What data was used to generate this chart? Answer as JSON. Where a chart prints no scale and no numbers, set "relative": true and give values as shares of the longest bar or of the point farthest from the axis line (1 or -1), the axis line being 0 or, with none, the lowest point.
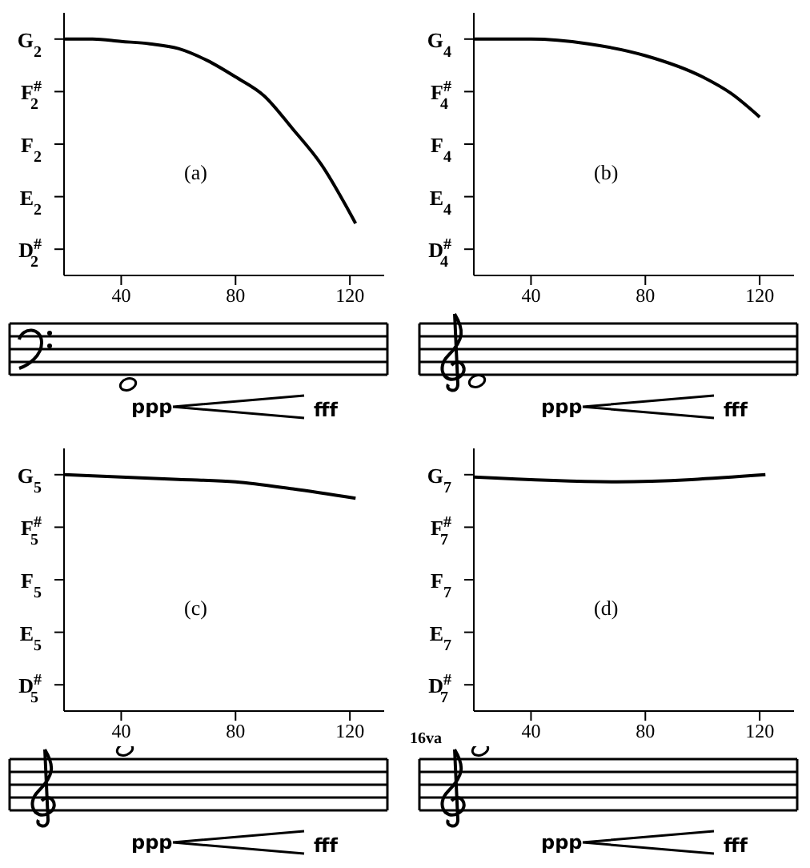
{
  "chart_data": [
    {
      "type": "line",
      "relative": true,
      "x": [
        20,
        30,
        40,
        50,
        60,
        70,
        80,
        90,
        100,
        110,
        122
      ],
      "values": [
        1,
        1,
        0.99,
        0.98,
        0.96,
        0.91,
        0.84,
        0.76,
        0.62,
        0.47,
        0.22
      ],
      "color": "#000000",
      "xlim": [
        20,
        132
      ],
      "xticks": [
        40,
        80,
        120
      ],
      "y_categories": [
        "G$_{2}$",
        "F$^{#}$$_{2}$",
        "F$_{2}$",
        "E$_{2}$",
        "D$^{#}$$_{2}$"
      ],
      "annotations": [
        "(a)",
        "ppp",
        "fff"
      ]
    },
    {
      "type": "line",
      "relative": true,
      "x": [
        20,
        40,
        60,
        80,
        100,
        110,
        120
      ],
      "values": [
        1,
        1,
        0.98,
        0.93,
        0.84,
        0.77,
        0.67
      ],
      "color": "#000000",
      "xlim": [
        20,
        132
      ],
      "xticks": [
        40,
        80,
        120
      ],
      "y_categories": [
        "G$_{4}$",
        "F$^{#}$$_{4}$",
        "F$_{4}$",
        "E$_{4}$",
        "D$^{#}$$_{4}$"
      ],
      "annotations": [
        "(b)",
        "ppp",
        "fff"
      ]
    },
    {
      "type": "line",
      "relative": true,
      "x": [
        20,
        40,
        60,
        80,
        100,
        122
      ],
      "values": [
        1,
        0.99,
        0.98,
        0.97,
        0.94,
        0.9
      ],
      "color": "#000000",
      "xlim": [
        20,
        132
      ],
      "xticks": [
        40,
        80,
        120
      ],
      "y_categories": [
        "G$_{5}$",
        "F$^{#}$$_{5}$",
        "F$_{5}$",
        "E$_{5}$",
        "D$^{#}$$_{5}$"
      ],
      "annotations": [
        "(c)",
        "ppp",
        "fff"
      ]
    },
    {
      "type": "line",
      "relative": true,
      "x": [
        20,
        70,
        122
      ],
      "values": [
        0.99,
        0.97,
        1
      ],
      "color": "#000000",
      "xlim": [
        20,
        132
      ],
      "xticks": [
        40,
        80,
        120
      ],
      "y_categories": [
        "G$_{7}$",
        "F$^{#}$$_{7}$",
        "F$_{7}$",
        "E$_{7}$",
        "D$^{#}$$_{7}$"
      ],
      "annotations": [
        "(d)",
        "ppp",
        "fff",
        "16va"
      ]
    }
  ]
}
